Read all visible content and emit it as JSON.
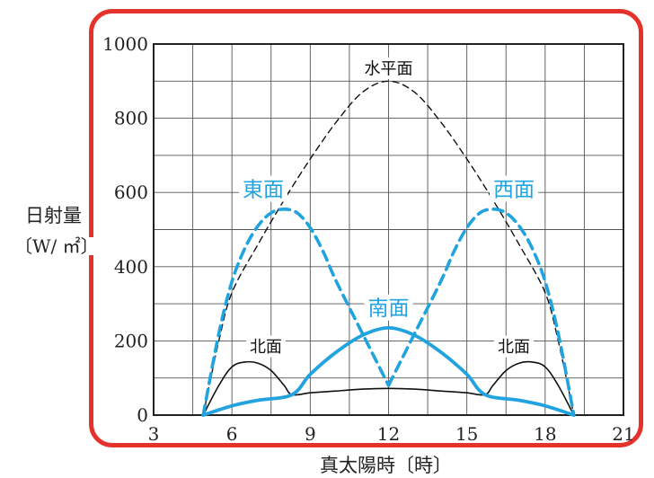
{
  "chart_data": {
    "type": "line",
    "xlabel": "真太陽時〔時〕",
    "ylabel_line1": "日射量",
    "ylabel_line2": "〔W/ ㎡〕",
    "xlim": [
      3,
      21
    ],
    "ylim": [
      0,
      1000
    ],
    "xticks": [
      3,
      6,
      9,
      12,
      15,
      18,
      21
    ],
    "yticks": [
      0,
      200,
      400,
      600,
      800,
      1000
    ],
    "grid": true,
    "colors": {
      "black": "#111111",
      "blue": "#20a3df",
      "frame": "#e5322d"
    },
    "series": [
      {
        "name": "水平面",
        "color": "black",
        "style": "dashed-thin",
        "x": [
          4.9,
          5.5,
          6,
          7,
          8,
          9,
          10,
          11,
          12,
          13,
          14,
          15,
          16,
          17,
          18,
          18.5,
          19.1
        ],
        "y": [
          0,
          200,
          330,
          460,
          580,
          690,
          790,
          870,
          900,
          870,
          790,
          690,
          580,
          460,
          330,
          200,
          0
        ]
      },
      {
        "name": "東面",
        "color": "blue",
        "style": "dashed-thick",
        "x": [
          4.9,
          5.5,
          6,
          6.5,
          7,
          7.5,
          8,
          8.5,
          9,
          9.5,
          10,
          11,
          12
        ],
        "y": [
          0,
          220,
          360,
          450,
          510,
          545,
          555,
          545,
          505,
          440,
          360,
          220,
          80
        ]
      },
      {
        "name": "西面",
        "color": "blue",
        "style": "dashed-thick",
        "x": [
          12,
          13,
          14,
          14.5,
          15,
          15.5,
          16,
          16.5,
          17,
          17.5,
          18,
          18.5,
          19.1
        ],
        "y": [
          80,
          220,
          360,
          440,
          505,
          545,
          555,
          545,
          510,
          450,
          360,
          220,
          0
        ]
      },
      {
        "name": "南面",
        "color": "blue",
        "style": "solid-thick",
        "x": [
          4.9,
          6,
          7,
          8.3,
          9,
          10,
          11,
          12,
          13,
          14,
          15,
          15.7,
          17,
          18,
          19.1
        ],
        "y": [
          0,
          25,
          40,
          55,
          110,
          170,
          215,
          235,
          215,
          170,
          110,
          55,
          40,
          25,
          0
        ]
      },
      {
        "name": "北面",
        "color": "black",
        "style": "solid-thin",
        "x": [
          4.9,
          5.5,
          6,
          6.5,
          7,
          7.5,
          8,
          8.3,
          9,
          10,
          11,
          12,
          13,
          14,
          15,
          15.7,
          16,
          16.5,
          17,
          17.5,
          18,
          18.5,
          19.1
        ],
        "y": [
          0,
          80,
          130,
          143,
          140,
          120,
          80,
          55,
          60,
          65,
          70,
          72,
          70,
          65,
          60,
          55,
          80,
          120,
          140,
          143,
          130,
          80,
          0
        ]
      }
    ],
    "annotations": [
      {
        "text": "水平面",
        "color": "black",
        "x": 12,
        "y": 935,
        "size": "small"
      },
      {
        "text": "東面",
        "color": "blue",
        "x": 7.2,
        "y": 610,
        "size": "large"
      },
      {
        "text": "西面",
        "color": "blue",
        "x": 16.8,
        "y": 610,
        "size": "large"
      },
      {
        "text": "南面",
        "color": "blue",
        "x": 12,
        "y": 290,
        "size": "large"
      },
      {
        "text": "北面",
        "color": "black",
        "x": 7.3,
        "y": 185,
        "size": "small"
      },
      {
        "text": "北面",
        "color": "black",
        "x": 16.8,
        "y": 185,
        "size": "small"
      }
    ]
  }
}
